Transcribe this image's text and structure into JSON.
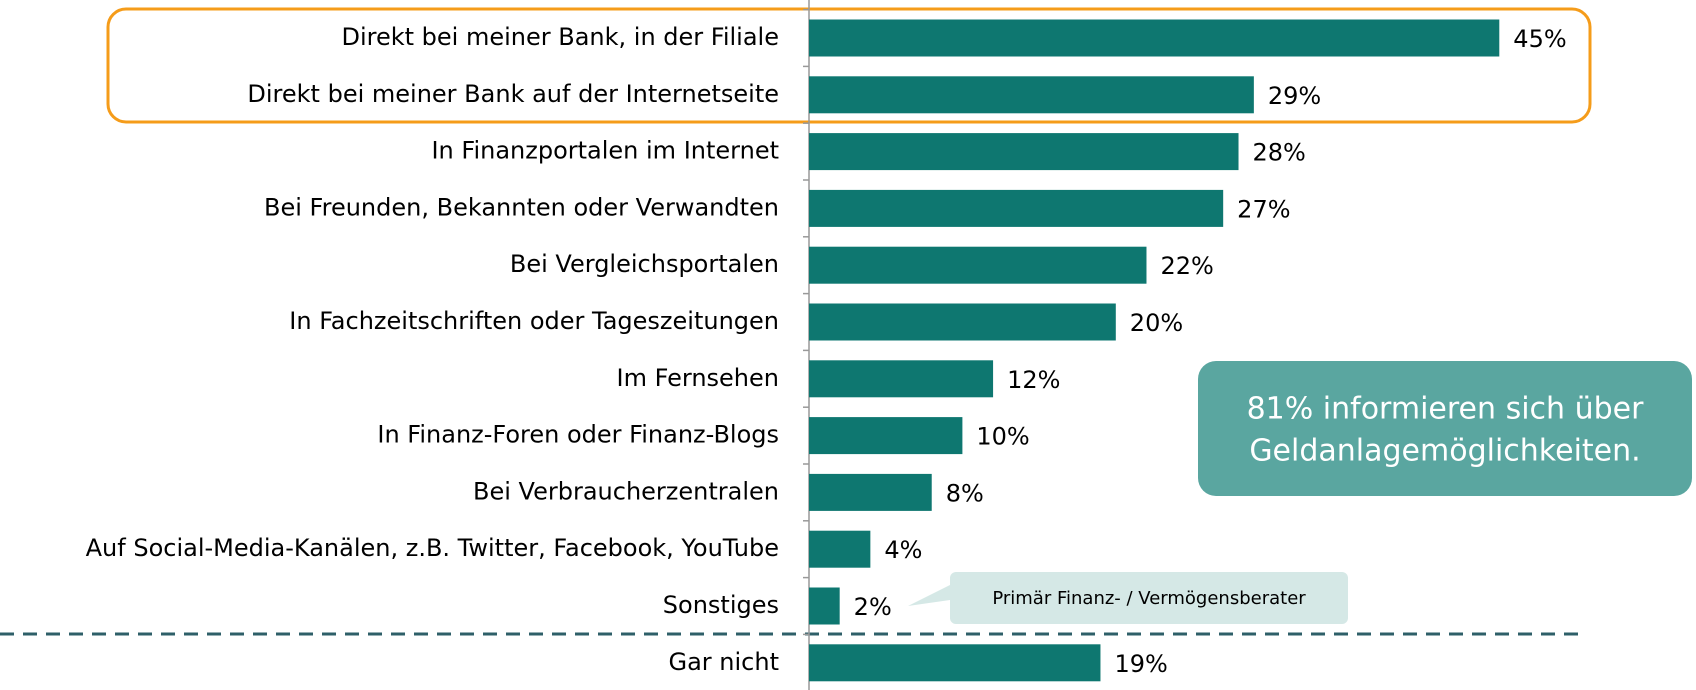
{
  "chart_data": {
    "type": "bar",
    "orientation": "horizontal",
    "categories": [
      "Direkt bei meiner Bank, in der Filiale",
      "Direkt bei meiner Bank auf der Internetseite",
      "In Finanzportalen im Internet",
      "Bei Freunden, Bekannten oder Verwandten",
      "Bei Vergleichsportalen",
      "In Fachzeitschriften oder Tageszeitungen",
      "Im Fernsehen",
      "In Finanz-Foren oder Finanz-Blogs",
      "Bei Verbraucherzentralen",
      "Auf Social-Media-Kanälen, z.B. Twitter, Facebook, YouTube",
      "Sonstiges",
      "Gar nicht"
    ],
    "values": [
      45,
      29,
      28,
      27,
      22,
      20,
      12,
      10,
      8,
      4,
      2,
      19
    ],
    "value_labels": [
      "45%",
      "29%",
      "28%",
      "27%",
      "22%",
      "20%",
      "12%",
      "10%",
      "8%",
      "4%",
      "2%",
      "19%"
    ],
    "color": "#0e7770",
    "callout": [
      "81% informieren sich über",
      "Geldanlagemöglichkeiten."
    ],
    "note": "Primär Finanz- / Vermögensberater"
  }
}
